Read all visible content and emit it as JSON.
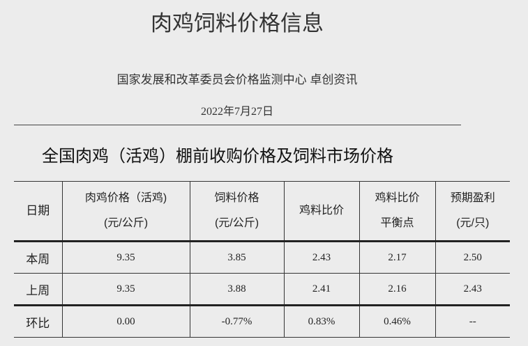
{
  "title": "肉鸡饲料价格信息",
  "subtitle": "国家发展和改革委员会价格监测中心  卓创资讯",
  "date": "2022年7月27日",
  "section_heading": "全国肉鸡（活鸡）棚前收购价格及饲料市场价格",
  "table": {
    "headers": [
      {
        "line1": "日期",
        "line2": ""
      },
      {
        "line1": "肉鸡价格（活鸡)",
        "line2": "(元/公斤)"
      },
      {
        "line1": "饲料价格",
        "line2": "(元/公斤)"
      },
      {
        "line1": "鸡料比价",
        "line2": ""
      },
      {
        "line1": "鸡料比价",
        "line2": "平衡点"
      },
      {
        "line1": "预期盈利",
        "line2": "(元/只)"
      }
    ],
    "rows": [
      [
        "本周",
        "9.35",
        "3.85",
        "2.43",
        "2.17",
        "2.50"
      ],
      [
        "上周",
        "9.35",
        "3.88",
        "2.41",
        "2.16",
        "2.43"
      ],
      [
        "环比",
        "0.00",
        "-0.77%",
        "0.83%",
        "0.46%",
        "--"
      ]
    ]
  }
}
